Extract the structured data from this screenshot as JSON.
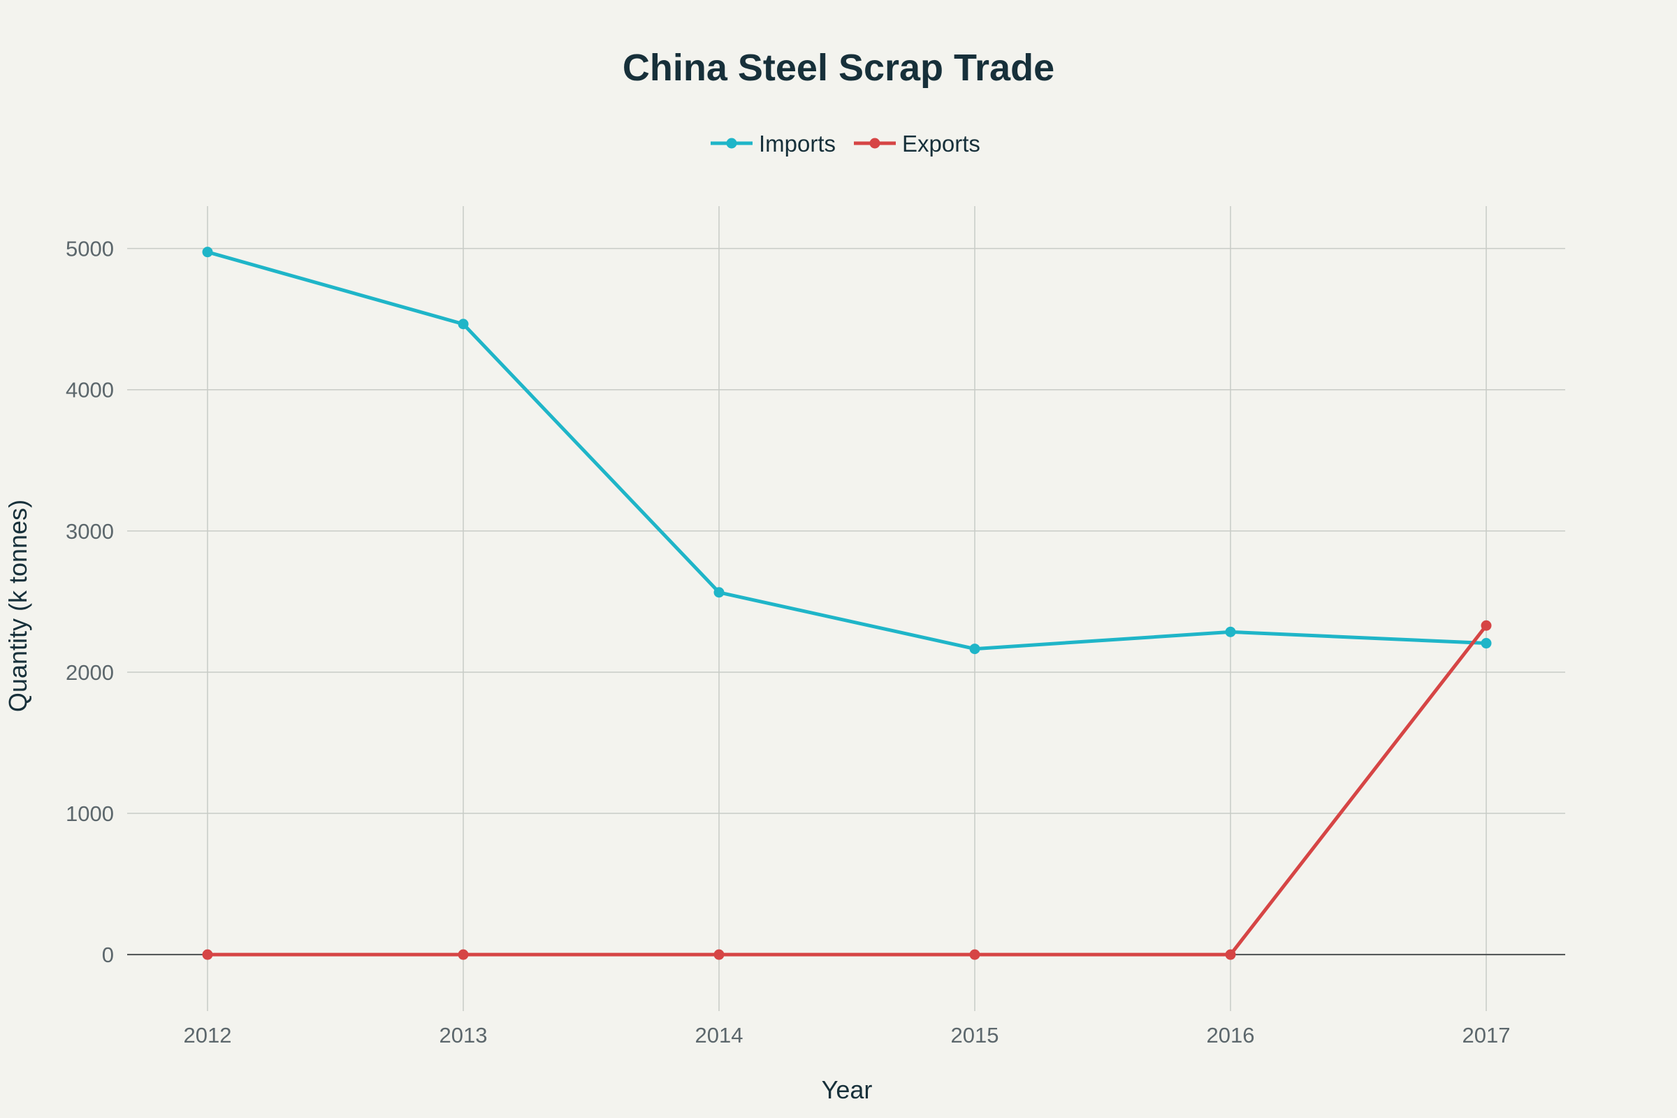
{
  "chart_data": {
    "type": "line",
    "title": "China Steel Scrap Trade",
    "xlabel": "Year",
    "ylabel": "Quantity (k tonnes)",
    "x": [
      "2012",
      "2013",
      "2014",
      "2015",
      "2016",
      "2017"
    ],
    "ylim": [
      -400,
      5300
    ],
    "yticks": [
      0,
      1000,
      2000,
      3000,
      4000,
      5000
    ],
    "grid": true,
    "legend_position": "top-center",
    "series": [
      {
        "name": "Imports",
        "color": "#1fb5c8",
        "values": [
          4975,
          4465,
          2565,
          2165,
          2285,
          2205
        ]
      },
      {
        "name": "Exports",
        "color": "#d64545",
        "values": [
          0,
          0,
          0,
          0,
          0,
          2330
        ]
      }
    ]
  }
}
